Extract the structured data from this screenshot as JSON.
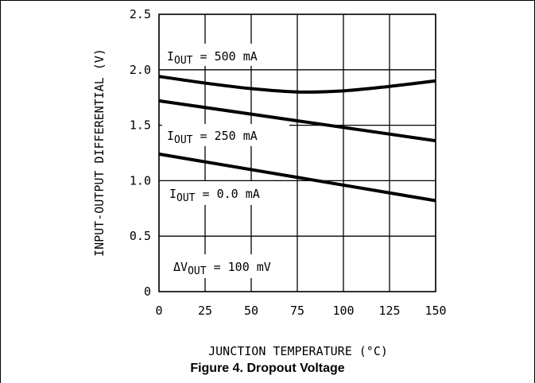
{
  "caption": "Figure 4. Dropout Voltage",
  "chart_data": {
    "type": "line",
    "xlabel": "JUNCTION TEMPERATURE (°C)",
    "ylabel": "INPUT-OUTPUT DIFFERENTIAL (V)",
    "xlim": [
      0,
      150
    ],
    "ylim": [
      0,
      2.5
    ],
    "x_ticks": [
      "0",
      "25",
      "50",
      "75",
      "100",
      "125",
      "150"
    ],
    "y_ticks": [
      "0",
      "0.5",
      "1.0",
      "1.5",
      "2.0",
      "2.5"
    ],
    "grid": true,
    "series": [
      {
        "name": "IOUT = 500 mA",
        "x": [
          0,
          25,
          50,
          75,
          100,
          125,
          150
        ],
        "y": [
          1.94,
          1.88,
          1.83,
          1.8,
          1.81,
          1.85,
          1.9
        ]
      },
      {
        "name": "IOUT = 250 mA",
        "x": [
          0,
          150
        ],
        "y": [
          1.72,
          1.36
        ]
      },
      {
        "name": "IOUT = 0.0 mA",
        "x": [
          0,
          150
        ],
        "y": [
          1.24,
          0.82
        ]
      }
    ],
    "annotations": {
      "i500": {
        "sym": "I",
        "sub": "OUT",
        "rest": " = 500 mA"
      },
      "i250": {
        "sym": "I",
        "sub": "OUT",
        "rest": " = 250 mA"
      },
      "i0": {
        "sym": "I",
        "sub": "OUT",
        "rest": " = 0.0 mA"
      },
      "dv": {
        "sym": "ΔV",
        "sub": "OUT",
        "rest": " = 100 mV"
      }
    }
  }
}
